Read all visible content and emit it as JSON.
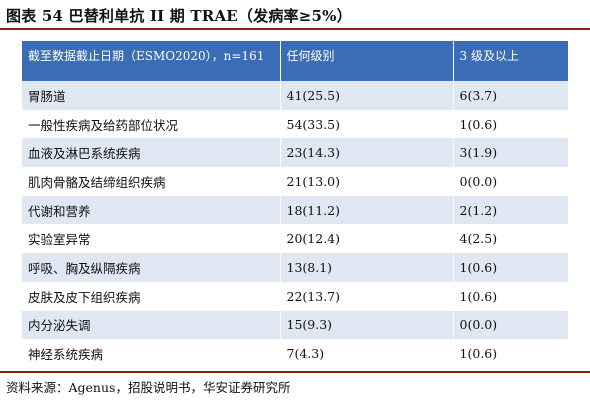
{
  "title": "图表 54 巴替利单抗 II 期 TRAE（发病率≥5%）",
  "table": {
    "headers": [
      "截至数据截止日期（ESMO2020），n=161",
      "任何级别",
      "3 级及以上"
    ],
    "rows": [
      {
        "category": "胃肠道",
        "any_grade": "41(25.5)",
        "grade3_plus": "6(3.7)"
      },
      {
        "category": "一般性疾病及给药部位状况",
        "any_grade": "54(33.5)",
        "grade3_plus": "1(0.6)"
      },
      {
        "category": "血液及淋巴系统疾病",
        "any_grade": "23(14.3)",
        "grade3_plus": "3(1.9)"
      },
      {
        "category": "肌肉骨骼及结缔组织疾病",
        "any_grade": "21(13.0)",
        "grade3_plus": "0(0.0)"
      },
      {
        "category": "代谢和营养",
        "any_grade": "18(11.2)",
        "grade3_plus": "2(1.2)"
      },
      {
        "category": "实验室异常",
        "any_grade": "20(12.4)",
        "grade3_plus": "4(2.5)"
      },
      {
        "category": "呼吸、胸及纵隔疾病",
        "any_grade": "13(8.1)",
        "grade3_plus": "1(0.6)"
      },
      {
        "category": "皮肤及皮下组织疾病",
        "any_grade": "22(13.7)",
        "grade3_plus": "1(0.6)"
      },
      {
        "category": "内分泌失调",
        "any_grade": "15(9.3)",
        "grade3_plus": "0(0.0)"
      },
      {
        "category": "神经系统疾病",
        "any_grade": "7(4.3)",
        "grade3_plus": "1(0.6)"
      }
    ]
  },
  "source": "资料来源：Agenus，招股说明书，华安证券研究所",
  "colors": {
    "header_bg": "#3a6db5",
    "row_shade": "#dfe7f3",
    "rule": "#8a1c1c"
  }
}
